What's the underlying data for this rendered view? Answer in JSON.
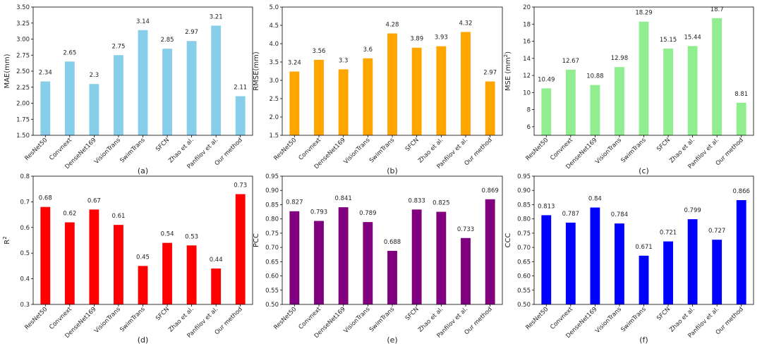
{
  "chart_data": [
    {
      "type": "bar",
      "title": "",
      "xlabel": "",
      "ylabel": "MAE(mm)",
      "ylabel_sup": "",
      "ylabel_tail": "",
      "caption": "(a)",
      "color": "#87ceeb",
      "ylim": [
        1.5,
        3.5
      ],
      "yticks": [
        "1.50",
        "1.75",
        "2.00",
        "2.25",
        "2.50",
        "2.75",
        "3.00",
        "3.25",
        "3.50"
      ],
      "ytick_values": [
        1.5,
        1.75,
        2.0,
        2.25,
        2.5,
        2.75,
        3.0,
        3.25,
        3.5
      ],
      "categories": [
        "ResNet50",
        "Convnext",
        "DenseNet169",
        "VisionTrans",
        "SwimTrans",
        "SFCN",
        "Zhao et al.",
        "Panfilov et al.",
        "Our method"
      ],
      "values": [
        2.34,
        2.65,
        2.3,
        2.75,
        3.14,
        2.85,
        2.97,
        3.21,
        2.11
      ],
      "value_labels": [
        "2.34",
        "2.65",
        "2.3",
        "2.75",
        "3.14",
        "2.85",
        "2.97",
        "3.21",
        "2.11"
      ]
    },
    {
      "type": "bar",
      "title": "",
      "xlabel": "",
      "ylabel": "RMSE(mm)",
      "ylabel_sup": "",
      "ylabel_tail": "",
      "caption": "(b)",
      "color": "#ffa500",
      "ylim": [
        1.5,
        5.0
      ],
      "yticks": [
        "1.5",
        "2.0",
        "2.5",
        "3.0",
        "3.5",
        "4.0",
        "4.5",
        "5.0"
      ],
      "ytick_values": [
        1.5,
        2.0,
        2.5,
        3.0,
        3.5,
        4.0,
        4.5,
        5.0
      ],
      "categories": [
        "ResNet50",
        "Convnext",
        "DenseNet169",
        "VisionTrans",
        "SwimTrans",
        "SFCN",
        "Zhao et al.",
        "Panfilov et al.",
        "Our method"
      ],
      "values": [
        3.24,
        3.56,
        3.3,
        3.6,
        4.28,
        3.89,
        3.93,
        4.32,
        2.97
      ],
      "value_labels": [
        "3.24",
        "3.56",
        "3.3",
        "3.6",
        "4.28",
        "3.89",
        "3.93",
        "4.32",
        "2.97"
      ]
    },
    {
      "type": "bar",
      "title": "",
      "xlabel": "",
      "ylabel": "MSE (mm",
      "ylabel_sup": "2",
      "ylabel_tail": ")",
      "caption": "(c)",
      "color": "#90ee90",
      "ylim": [
        5,
        20
      ],
      "yticks": [
        "6",
        "8",
        "10",
        "12",
        "14",
        "16",
        "18",
        "20"
      ],
      "ytick_values": [
        6,
        8,
        10,
        12,
        14,
        16,
        18,
        20
      ],
      "categories": [
        "ResNet50",
        "Convnext",
        "DenseNet169",
        "VisionTrans",
        "SwimTrans",
        "SFCN",
        "Zhao et al.",
        "Panfilov et al.",
        "Our method"
      ],
      "values": [
        10.49,
        12.67,
        10.88,
        12.98,
        18.29,
        15.15,
        15.44,
        18.7,
        8.81
      ],
      "value_labels": [
        "10.49",
        "12.67",
        "10.88",
        "12.98",
        "18.29",
        "15.15",
        "15.44",
        "18.7",
        "8.81"
      ]
    },
    {
      "type": "bar",
      "title": "",
      "xlabel": "",
      "ylabel": "R",
      "ylabel_sup": "2",
      "ylabel_tail": "",
      "caption": "(d)",
      "color": "#ff0000",
      "ylim": [
        0.3,
        0.8
      ],
      "yticks": [
        "0.3",
        "0.4",
        "0.5",
        "0.6",
        "0.7",
        "0.8"
      ],
      "ytick_values": [
        0.3,
        0.4,
        0.5,
        0.6,
        0.7,
        0.8
      ],
      "categories": [
        "ResNet50",
        "Convnext",
        "DenseNet169",
        "VisionTrans",
        "SwimTrans",
        "SFCN",
        "Zhao et al.",
        "Panfilov et al.",
        "Our method"
      ],
      "values": [
        0.68,
        0.62,
        0.67,
        0.61,
        0.45,
        0.54,
        0.53,
        0.44,
        0.73
      ],
      "value_labels": [
        "0.68",
        "0.62",
        "0.67",
        "0.61",
        "0.45",
        "0.54",
        "0.53",
        "0.44",
        "0.73"
      ]
    },
    {
      "type": "bar",
      "title": "",
      "xlabel": "",
      "ylabel": "PCC",
      "ylabel_sup": "",
      "ylabel_tail": "",
      "caption": "(e)",
      "color": "#800080",
      "ylim": [
        0.5,
        0.95
      ],
      "yticks": [
        "0.50",
        "0.55",
        "0.60",
        "0.65",
        "0.70",
        "0.75",
        "0.80",
        "0.85",
        "0.90",
        "0.95"
      ],
      "ytick_values": [
        0.5,
        0.55,
        0.6,
        0.65,
        0.7,
        0.75,
        0.8,
        0.85,
        0.9,
        0.95
      ],
      "categories": [
        "ResNet50",
        "Convnext",
        "DenseNet169",
        "VisionTrans",
        "SwimTrans",
        "SFCN",
        "Zhao et al.",
        "Panfilov et al.",
        "Our method"
      ],
      "values": [
        0.827,
        0.793,
        0.841,
        0.789,
        0.688,
        0.833,
        0.825,
        0.733,
        0.869
      ],
      "value_labels": [
        "0.827",
        "0.793",
        "0.841",
        "0.789",
        "0.688",
        "0.833",
        "0.825",
        "0.733",
        "0.869"
      ]
    },
    {
      "type": "bar",
      "title": "",
      "xlabel": "",
      "ylabel": "CCC",
      "ylabel_sup": "",
      "ylabel_tail": "",
      "caption": "(f)",
      "color": "#0000ff",
      "ylim": [
        0.5,
        0.95
      ],
      "yticks": [
        "0.50",
        "0.55",
        "0.60",
        "0.65",
        "0.70",
        "0.75",
        "0.80",
        "0.85",
        "0.90",
        "0.95"
      ],
      "ytick_values": [
        0.5,
        0.55,
        0.6,
        0.65,
        0.7,
        0.75,
        0.8,
        0.85,
        0.9,
        0.95
      ],
      "categories": [
        "ResNet50",
        "Convnext",
        "DenseNet169",
        "VisionTrans",
        "SwimTrans",
        "SFCN",
        "Zhao et al.",
        "Panfilov et al.",
        "Our method"
      ],
      "values": [
        0.813,
        0.787,
        0.84,
        0.784,
        0.671,
        0.721,
        0.799,
        0.727,
        0.866
      ],
      "value_labels": [
        "0.813",
        "0.787",
        "0.84",
        "0.784",
        "0.671",
        "0.721",
        "0.799",
        "0.727",
        "0.866"
      ]
    }
  ]
}
